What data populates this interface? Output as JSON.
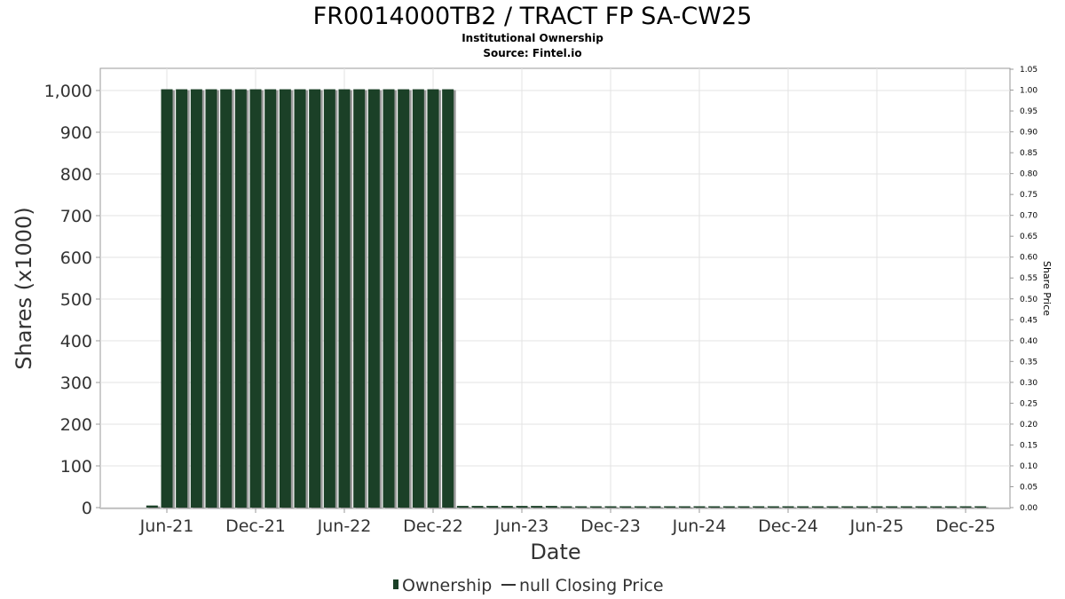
{
  "chart_data": {
    "type": "bar",
    "title": "FR0014000TB2 / TRACT FP SA-CW25",
    "subtitle": "Institutional Ownership",
    "source": "Source: Fintel.io",
    "xlabel": "Date",
    "ylabel": "Shares (x1000)",
    "y2label": "Share Price",
    "ylim": [
      0,
      1000
    ],
    "y2lim": [
      0,
      1.05
    ],
    "grid": true,
    "legend_position": "bottom",
    "legend": [
      {
        "label": "Ownership",
        "marker": "bar",
        "color": "#1b4027"
      },
      {
        "label": "null Closing Price",
        "marker": "line",
        "color": "#333333"
      }
    ],
    "y_ticks": [
      "0",
      "100",
      "200",
      "300",
      "400",
      "500",
      "600",
      "700",
      "800",
      "900",
      "1,000"
    ],
    "y_tick_values": [
      0,
      100,
      200,
      300,
      400,
      500,
      600,
      700,
      800,
      900,
      1000
    ],
    "y2_ticks": [
      "0.00",
      "0.05",
      "0.10",
      "0.15",
      "0.20",
      "0.25",
      "0.30",
      "0.35",
      "0.40",
      "0.45",
      "0.50",
      "0.55",
      "0.60",
      "0.65",
      "0.70",
      "0.75",
      "0.80",
      "0.85",
      "0.90",
      "0.95",
      "1.00",
      "1.05"
    ],
    "x_ticks": [
      "Jun-21",
      "Dec-21",
      "Jun-22",
      "Dec-22",
      "Jun-23",
      "Dec-23",
      "Jun-24",
      "Dec-24",
      "Jun-25",
      "Dec-25"
    ],
    "x_tick_months": [
      17,
      23,
      29,
      35,
      41,
      47,
      53,
      59,
      65,
      71
    ],
    "x_start_month": 12.5,
    "x_end_month": 74,
    "series": [
      {
        "name": "Ownership",
        "color": "#1b4027",
        "month_index": [
          16,
          17,
          18,
          19,
          20,
          21,
          22,
          23,
          24,
          25,
          26,
          27,
          28,
          29,
          30,
          31,
          32,
          33,
          34,
          35,
          36,
          37,
          38,
          39,
          40,
          41,
          42,
          43,
          44,
          45,
          46,
          47,
          48,
          49,
          50,
          51,
          52,
          53,
          54,
          55,
          56,
          57,
          58,
          59,
          60,
          61,
          62,
          63,
          64,
          65,
          66,
          67,
          68,
          69,
          70,
          71,
          72
        ],
        "values": [
          5,
          1003,
          1003,
          1003,
          1003,
          1003,
          1003,
          1003,
          1003,
          1003,
          1003,
          1003,
          1003,
          1003,
          1003,
          1003,
          1003,
          1003,
          1003,
          1003,
          1003,
          4,
          4,
          4,
          4,
          4,
          4,
          4,
          3,
          3,
          2,
          2,
          2,
          2,
          2,
          2,
          2,
          2,
          2,
          2,
          2,
          2,
          2,
          2,
          2,
          2,
          2,
          2,
          2,
          2,
          2,
          2,
          2,
          2,
          2,
          2,
          2
        ]
      }
    ]
  }
}
